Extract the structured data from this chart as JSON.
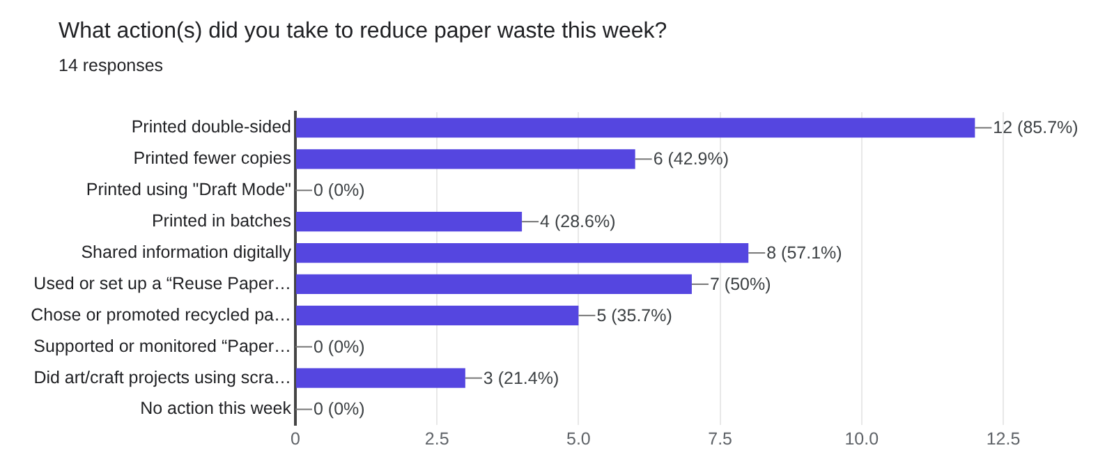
{
  "chart_data": {
    "type": "bar",
    "orientation": "horizontal",
    "title": "What action(s) did you take to reduce paper waste this week?",
    "subtitle": "14 responses",
    "categories": [
      "Printed double-sided",
      "Printed fewer copies",
      "Printed using \"Draft Mode\"",
      "Printed in batches",
      "Shared information digitally",
      "Used or set up a “Reuse Paper…",
      "Chose or promoted recycled pa…",
      "Supported or monitored “Paper…",
      "Did art/craft projects using scra…",
      "No action this week"
    ],
    "values": [
      12,
      6,
      0,
      4,
      8,
      7,
      5,
      0,
      3,
      0
    ],
    "value_labels": [
      "12 (85.7%)",
      "6 (42.9%)",
      "0 (0%)",
      "4 (28.6%)",
      "8 (57.1%)",
      "7 (50%)",
      "5 (35.7%)",
      "0 (0%)",
      "3 (21.4%)",
      "0 (0%)"
    ],
    "color": "#5546e0",
    "xlim": [
      0,
      12.5
    ],
    "xticks": [
      0,
      2.5,
      {
        "value": 5,
        "label": "5.0"
      },
      7.5,
      {
        "value": 10,
        "label": "10.0"
      },
      12.5
    ],
    "grid": "x",
    "legend": false
  }
}
